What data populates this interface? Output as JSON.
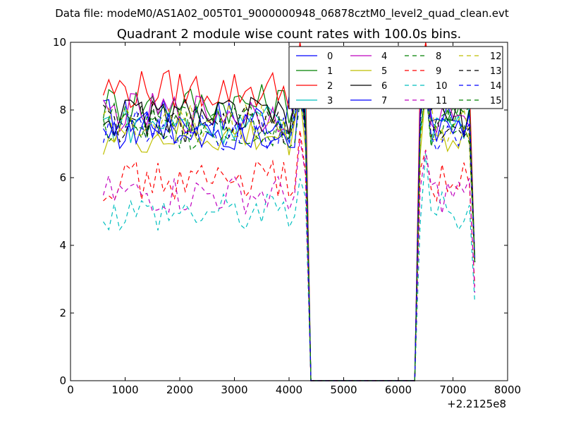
{
  "figure": {
    "suptitle": "Data file: modeM0/AS1A02_005T01_9000000948_06878cztM0_level2_quad_clean.evt",
    "title": "Quadrant 2 module wise count rates with 100.0s bins.",
    "x_offset_label": "+2.2125e8"
  },
  "chart_data": {
    "type": "line",
    "title": "Quadrant 2 module wise count rates with 100.0s bins.",
    "xlabel": "",
    "ylabel": "",
    "xlim": [
      0,
      8000
    ],
    "ylim": [
      0,
      10
    ],
    "x_offset": 221250000,
    "xticks": [
      0,
      1000,
      2000,
      3000,
      4000,
      5000,
      6000,
      7000,
      8000
    ],
    "yticks": [
      0,
      2,
      4,
      6,
      8,
      10
    ],
    "grid": false,
    "legend": {
      "position": "top-right",
      "columns": 4
    },
    "x": [
      600,
      700,
      800,
      900,
      1000,
      1100,
      1200,
      1300,
      1400,
      1500,
      1600,
      1700,
      1800,
      1900,
      2000,
      2100,
      2200,
      2300,
      2400,
      2500,
      2600,
      2700,
      2800,
      2900,
      3000,
      3100,
      3200,
      3300,
      3400,
      3500,
      3600,
      3700,
      3800,
      3900,
      4000,
      4100,
      4200,
      4300,
      4400,
      6300,
      6400,
      6500,
      6600,
      6700,
      6800,
      6900,
      7000,
      7100,
      7200,
      7300,
      7400
    ],
    "series": [
      {
        "name": "0",
        "color": "#0000ff",
        "dash": false,
        "base": 7.8,
        "end": 3.5
      },
      {
        "name": "1",
        "color": "#008000",
        "dash": false,
        "base": 8.2,
        "end": 3.5
      },
      {
        "name": "2",
        "color": "#ff0000",
        "dash": false,
        "base": 8.6,
        "end": 3.5
      },
      {
        "name": "3",
        "color": "#00bfbf",
        "dash": false,
        "base": 7.6,
        "end": 3.5
      },
      {
        "name": "4",
        "color": "#bf00bf",
        "dash": false,
        "base": 7.9,
        "end": 3.5
      },
      {
        "name": "5",
        "color": "#bfbf00",
        "dash": false,
        "base": 7.2,
        "end": 3.5
      },
      {
        "name": "6",
        "color": "#000000",
        "dash": false,
        "base": 7.8,
        "end": 3.5
      },
      {
        "name": "7",
        "color": "#0000ff",
        "dash": false,
        "base": 7.4,
        "end": 3.5
      },
      {
        "name": "8",
        "color": "#008000",
        "dash": true,
        "base": 7.4,
        "end": 3.5
      },
      {
        "name": "9",
        "color": "#ff0000",
        "dash": true,
        "base": 5.9,
        "end": 2.8
      },
      {
        "name": "10",
        "color": "#00bfbf",
        "dash": true,
        "base": 5.0,
        "end": 2.3
      },
      {
        "name": "11",
        "color": "#bf00bf",
        "dash": true,
        "base": 5.5,
        "end": 2.6
      },
      {
        "name": "12",
        "color": "#bfbf00",
        "dash": true,
        "base": 7.6,
        "end": 3.5
      },
      {
        "name": "13",
        "color": "#000000",
        "dash": true,
        "base": 7.6,
        "end": 3.5
      },
      {
        "name": "14",
        "color": "#0000ff",
        "dash": true,
        "base": 7.4,
        "end": 3.5
      },
      {
        "name": "15",
        "color": "#008000",
        "dash": true,
        "base": 7.6,
        "end": 3.5
      }
    ]
  }
}
